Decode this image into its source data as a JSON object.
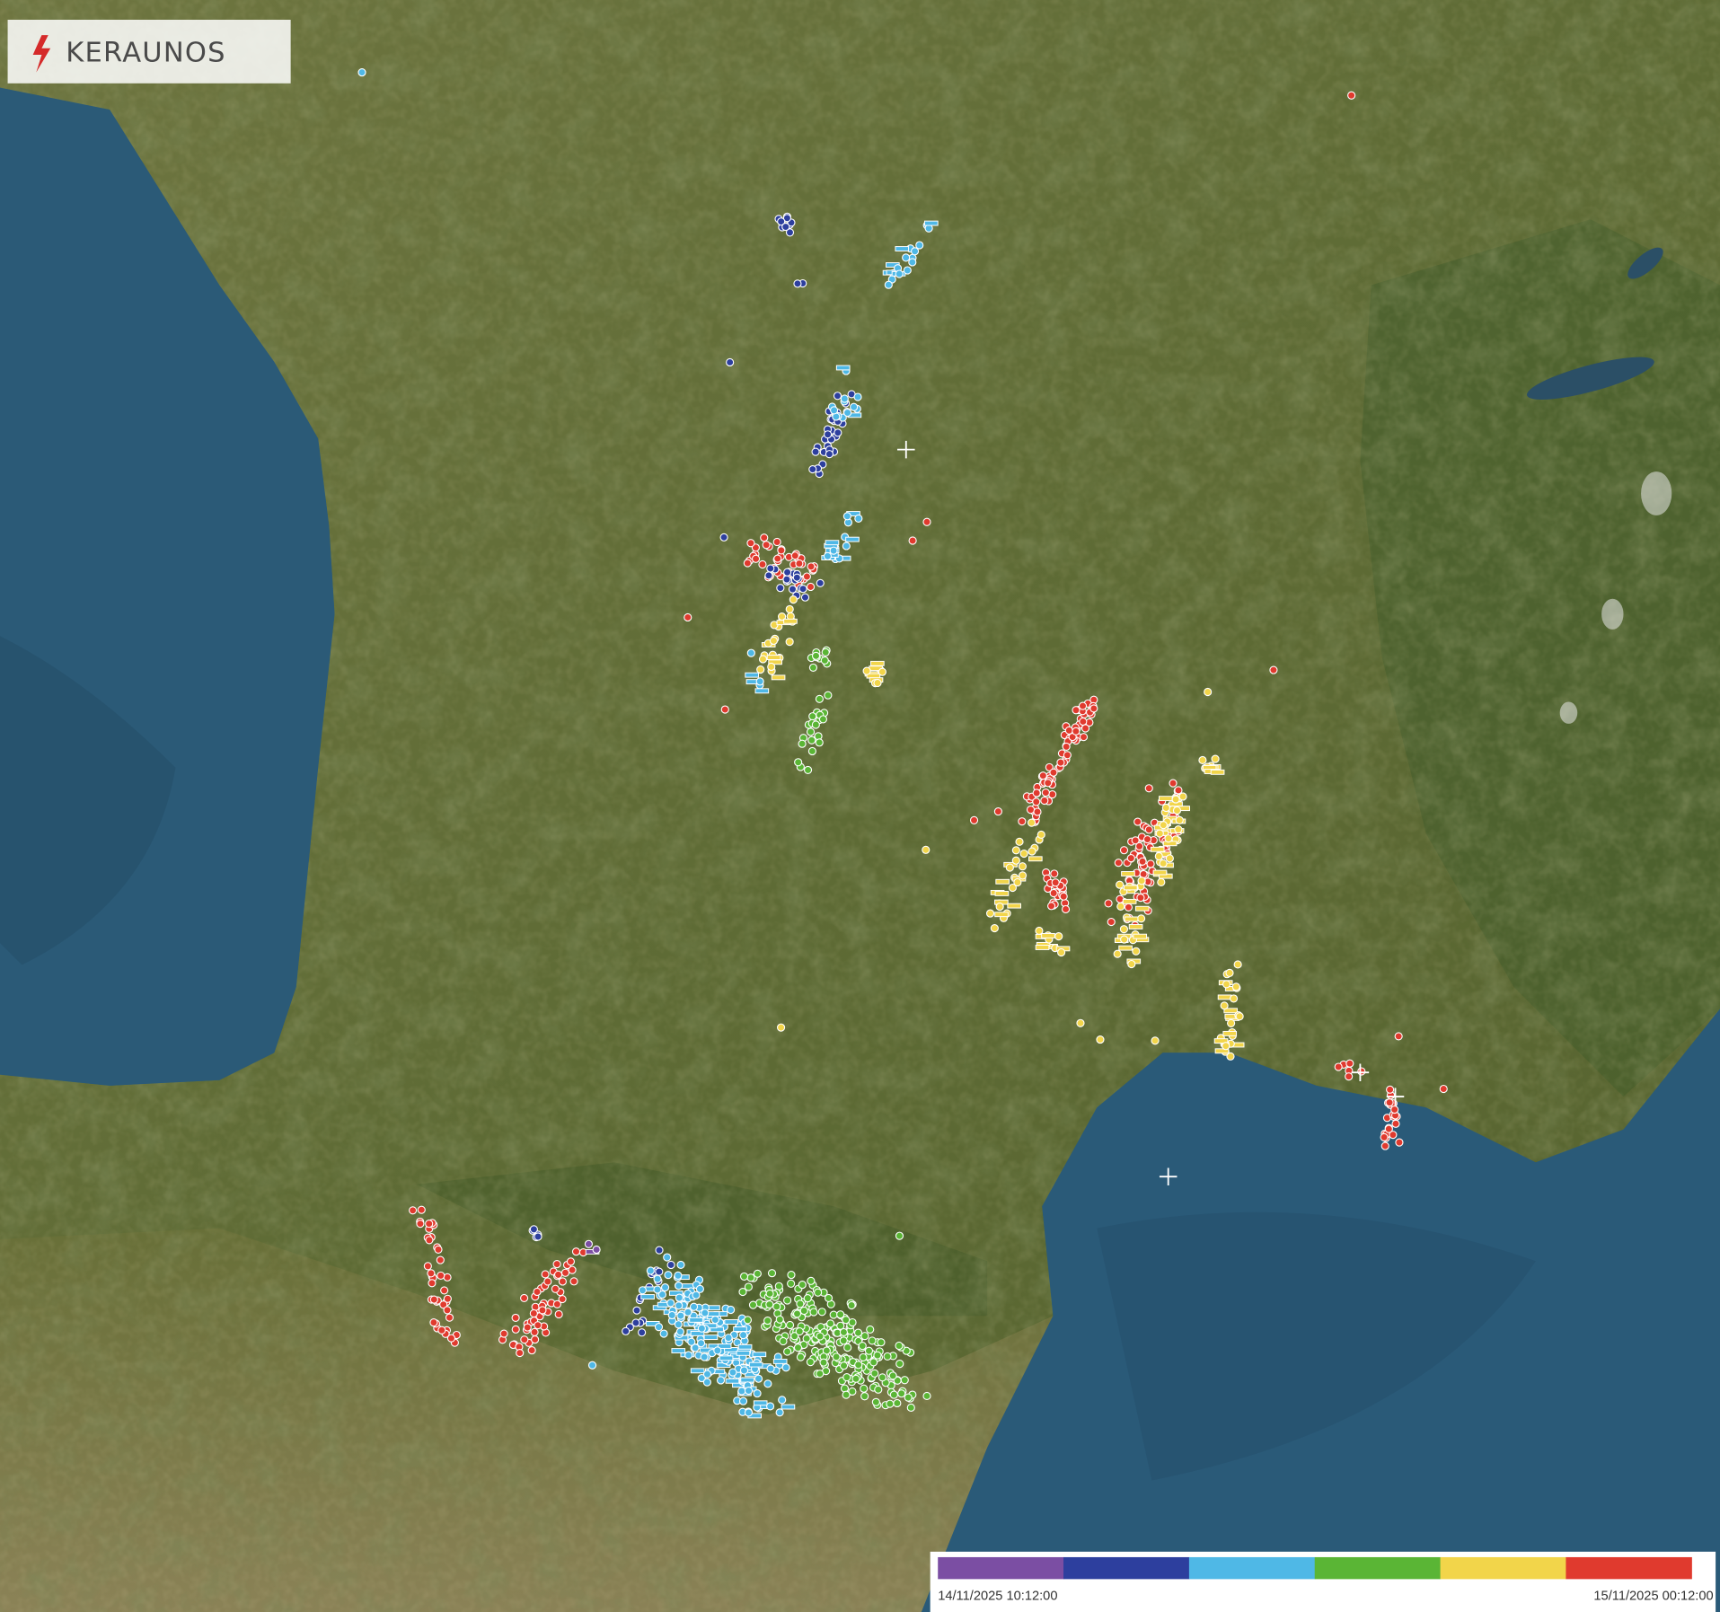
{
  "header": {
    "logo": "KERAUNOS"
  },
  "legend": {
    "colors": [
      "#7b4ea3",
      "#2d3f9e",
      "#4fb8e6",
      "#5ab535",
      "#f2d54a",
      "#e03a2e"
    ],
    "start": "14/11/2025 10:12:00",
    "end": "15/11/2025 00:12:00"
  }
}
